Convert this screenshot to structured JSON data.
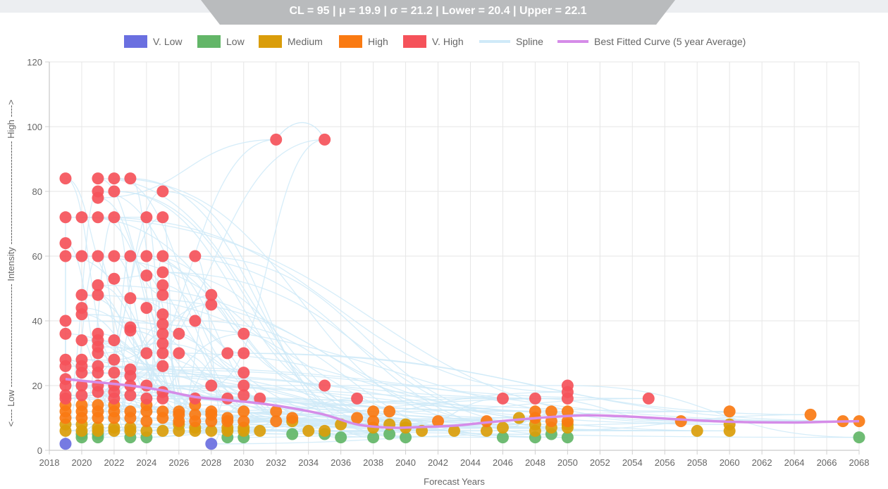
{
  "stats_banner": "CL = 95 | μ = 19.9 | σ = 21.2 | Lower = 20.4 | Upper = 22.1",
  "legend": [
    {
      "label": "V. Low",
      "color": "#6a6fe0",
      "kind": "box"
    },
    {
      "label": "Low",
      "color": "#63b668",
      "kind": "box"
    },
    {
      "label": "Medium",
      "color": "#da9d0a",
      "kind": "box"
    },
    {
      "label": "High",
      "color": "#fa7a12",
      "kind": "box"
    },
    {
      "label": "V. High",
      "color": "#f5525a",
      "kind": "box"
    },
    {
      "label": "Spline",
      "color": "#cfeaf8",
      "kind": "line"
    },
    {
      "label": "Best Fitted Curve (5 year Average)",
      "color": "#d58ce8",
      "kind": "line"
    }
  ],
  "chart_data": {
    "type": "scatter",
    "xlabel": "Forecast Years",
    "ylabel": "<---- Low ---------------------------------- Intensity ---------------------------------- High ---->",
    "xlim": [
      2018,
      2068
    ],
    "ylim": [
      0,
      120
    ],
    "x_ticks": [
      2018,
      2020,
      2022,
      2024,
      2026,
      2028,
      2030,
      2032,
      2034,
      2036,
      2038,
      2040,
      2042,
      2044,
      2046,
      2048,
      2050,
      2052,
      2054,
      2056,
      2058,
      2060,
      2062,
      2064,
      2066,
      2068
    ],
    "y_ticks": [
      0,
      20,
      40,
      60,
      80,
      100,
      120
    ],
    "grid": true,
    "legend_position": "top",
    "series": [
      {
        "name": "V. Low",
        "color": "#6a6fe0",
        "points": [
          [
            2019,
            2
          ],
          [
            2028,
            2
          ]
        ]
      },
      {
        "name": "Low",
        "color": "#63b668",
        "points": [
          [
            2020,
            4
          ],
          [
            2020,
            5
          ],
          [
            2021,
            4
          ],
          [
            2021,
            5
          ],
          [
            2023,
            4
          ],
          [
            2024,
            4
          ],
          [
            2029,
            4
          ],
          [
            2030,
            4
          ],
          [
            2033,
            5
          ],
          [
            2035,
            5
          ],
          [
            2036,
            4
          ],
          [
            2038,
            4
          ],
          [
            2039,
            5
          ],
          [
            2040,
            4
          ],
          [
            2046,
            4
          ],
          [
            2048,
            4
          ],
          [
            2049,
            5
          ],
          [
            2050,
            4
          ],
          [
            2068,
            4
          ]
        ]
      },
      {
        "name": "Medium",
        "color": "#da9d0a",
        "points": [
          [
            2019,
            6
          ],
          [
            2019,
            8
          ],
          [
            2020,
            6
          ],
          [
            2020,
            8
          ],
          [
            2021,
            6
          ],
          [
            2021,
            7
          ],
          [
            2022,
            6
          ],
          [
            2022,
            7
          ],
          [
            2023,
            6
          ],
          [
            2023,
            7
          ],
          [
            2024,
            6
          ],
          [
            2025,
            6
          ],
          [
            2026,
            6
          ],
          [
            2026,
            8
          ],
          [
            2027,
            6
          ],
          [
            2027,
            7
          ],
          [
            2028,
            6
          ],
          [
            2029,
            6
          ],
          [
            2029,
            7
          ],
          [
            2030,
            6
          ],
          [
            2030,
            7
          ],
          [
            2031,
            6
          ],
          [
            2033,
            9
          ],
          [
            2034,
            6
          ],
          [
            2035,
            6
          ],
          [
            2036,
            8
          ],
          [
            2038,
            7
          ],
          [
            2039,
            8
          ],
          [
            2040,
            7
          ],
          [
            2040,
            8
          ],
          [
            2041,
            6
          ],
          [
            2043,
            6
          ],
          [
            2045,
            6
          ],
          [
            2046,
            7
          ],
          [
            2047,
            10
          ],
          [
            2048,
            6
          ],
          [
            2048,
            8
          ],
          [
            2049,
            7
          ],
          [
            2050,
            7
          ],
          [
            2050,
            8
          ],
          [
            2058,
            6
          ],
          [
            2060,
            6
          ],
          [
            2060,
            8
          ]
        ]
      },
      {
        "name": "High",
        "color": "#fa7a12",
        "points": [
          [
            2019,
            10
          ],
          [
            2019,
            12
          ],
          [
            2019,
            14
          ],
          [
            2020,
            10
          ],
          [
            2020,
            12
          ],
          [
            2020,
            14
          ],
          [
            2021,
            10
          ],
          [
            2021,
            12
          ],
          [
            2021,
            14
          ],
          [
            2022,
            10
          ],
          [
            2022,
            12
          ],
          [
            2022,
            14
          ],
          [
            2023,
            10
          ],
          [
            2023,
            12
          ],
          [
            2024,
            9
          ],
          [
            2024,
            12
          ],
          [
            2024,
            14
          ],
          [
            2025,
            10
          ],
          [
            2025,
            12
          ],
          [
            2026,
            9
          ],
          [
            2026,
            11
          ],
          [
            2026,
            12
          ],
          [
            2027,
            9
          ],
          [
            2027,
            11
          ],
          [
            2027,
            14
          ],
          [
            2028,
            9
          ],
          [
            2028,
            11
          ],
          [
            2028,
            12
          ],
          [
            2029,
            9
          ],
          [
            2029,
            10
          ],
          [
            2030,
            9
          ],
          [
            2030,
            12
          ],
          [
            2032,
            9
          ],
          [
            2032,
            12
          ],
          [
            2033,
            10
          ],
          [
            2037,
            10
          ],
          [
            2038,
            9
          ],
          [
            2038,
            12
          ],
          [
            2039,
            12
          ],
          [
            2042,
            9
          ],
          [
            2045,
            9
          ],
          [
            2048,
            10
          ],
          [
            2048,
            12
          ],
          [
            2049,
            9
          ],
          [
            2049,
            12
          ],
          [
            2050,
            9
          ],
          [
            2050,
            12
          ],
          [
            2057,
            9
          ],
          [
            2060,
            12
          ],
          [
            2065,
            11
          ],
          [
            2067,
            9
          ],
          [
            2068,
            9
          ]
        ]
      },
      {
        "name": "V. High",
        "color": "#f5525a",
        "points": [
          [
            2019,
            84
          ],
          [
            2019,
            72
          ],
          [
            2019,
            64
          ],
          [
            2019,
            60
          ],
          [
            2019,
            40
          ],
          [
            2019,
            36
          ],
          [
            2019,
            28
          ],
          [
            2019,
            26
          ],
          [
            2019,
            22
          ],
          [
            2019,
            20
          ],
          [
            2019,
            17
          ],
          [
            2019,
            16
          ],
          [
            2020,
            72
          ],
          [
            2020,
            60
          ],
          [
            2020,
            48
          ],
          [
            2020,
            44
          ],
          [
            2020,
            42
          ],
          [
            2020,
            34
          ],
          [
            2020,
            28
          ],
          [
            2020,
            26
          ],
          [
            2020,
            24
          ],
          [
            2020,
            20
          ],
          [
            2020,
            17
          ],
          [
            2021,
            84
          ],
          [
            2021,
            80
          ],
          [
            2021,
            78
          ],
          [
            2021,
            72
          ],
          [
            2021,
            60
          ],
          [
            2021,
            51
          ],
          [
            2021,
            48
          ],
          [
            2021,
            36
          ],
          [
            2021,
            34
          ],
          [
            2021,
            32
          ],
          [
            2021,
            30
          ],
          [
            2021,
            26
          ],
          [
            2021,
            24
          ],
          [
            2021,
            20
          ],
          [
            2021,
            18
          ],
          [
            2022,
            84
          ],
          [
            2022,
            80
          ],
          [
            2022,
            72
          ],
          [
            2022,
            60
          ],
          [
            2022,
            53
          ],
          [
            2022,
            34
          ],
          [
            2022,
            28
          ],
          [
            2022,
            24
          ],
          [
            2022,
            20
          ],
          [
            2022,
            18
          ],
          [
            2022,
            16
          ],
          [
            2023,
            84
          ],
          [
            2023,
            60
          ],
          [
            2023,
            47
          ],
          [
            2023,
            38
          ],
          [
            2023,
            37
          ],
          [
            2023,
            25
          ],
          [
            2023,
            23
          ],
          [
            2023,
            20
          ],
          [
            2023,
            17
          ],
          [
            2024,
            72
          ],
          [
            2024,
            60
          ],
          [
            2024,
            54
          ],
          [
            2024,
            44
          ],
          [
            2024,
            30
          ],
          [
            2024,
            20
          ],
          [
            2024,
            16
          ],
          [
            2025,
            80
          ],
          [
            2025,
            72
          ],
          [
            2025,
            60
          ],
          [
            2025,
            55
          ],
          [
            2025,
            51
          ],
          [
            2025,
            48
          ],
          [
            2025,
            42
          ],
          [
            2025,
            39
          ],
          [
            2025,
            36
          ],
          [
            2025,
            33
          ],
          [
            2025,
            30
          ],
          [
            2025,
            26
          ],
          [
            2025,
            18
          ],
          [
            2025,
            16
          ],
          [
            2026,
            36
          ],
          [
            2026,
            30
          ],
          [
            2027,
            60
          ],
          [
            2027,
            40
          ],
          [
            2027,
            16
          ],
          [
            2028,
            48
          ],
          [
            2028,
            45
          ],
          [
            2028,
            20
          ],
          [
            2029,
            30
          ],
          [
            2029,
            16
          ],
          [
            2030,
            36
          ],
          [
            2030,
            30
          ],
          [
            2030,
            24
          ],
          [
            2030,
            20
          ],
          [
            2030,
            17
          ],
          [
            2031,
            16
          ],
          [
            2032,
            96
          ],
          [
            2035,
            96
          ],
          [
            2035,
            20
          ],
          [
            2037,
            16
          ],
          [
            2046,
            16
          ],
          [
            2048,
            16
          ],
          [
            2050,
            20
          ],
          [
            2050,
            18
          ],
          [
            2050,
            16
          ],
          [
            2055,
            16
          ]
        ]
      },
      {
        "name": "Best Fitted Curve (5 year Average)",
        "color": "#d58ce8",
        "type": "line",
        "points": [
          [
            2019,
            22
          ],
          [
            2021,
            21
          ],
          [
            2023,
            20
          ],
          [
            2025,
            18.5
          ],
          [
            2027,
            16.5
          ],
          [
            2029,
            15.5
          ],
          [
            2031,
            14.5
          ],
          [
            2033,
            13
          ],
          [
            2035,
            11
          ],
          [
            2037,
            8
          ],
          [
            2039,
            7
          ],
          [
            2041,
            7.2
          ],
          [
            2043,
            7.6
          ],
          [
            2045,
            8.6
          ],
          [
            2047,
            9.5
          ],
          [
            2049,
            10.3
          ],
          [
            2051,
            10.8
          ],
          [
            2053,
            10.6
          ],
          [
            2055,
            10.1
          ],
          [
            2057,
            9.5
          ],
          [
            2059,
            9
          ],
          [
            2061,
            8.7
          ],
          [
            2064,
            8.6
          ],
          [
            2066,
            8.8
          ],
          [
            2068,
            9
          ]
        ]
      }
    ]
  }
}
